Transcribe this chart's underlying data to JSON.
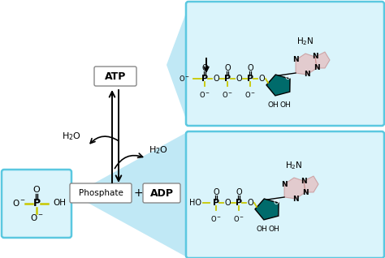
{
  "bg_color": "#ffffff",
  "box_border": "#5bc8e0",
  "panel_fill": "#daf4fb",
  "teal": "#006b6b",
  "yellow_bond": "#c8c800",
  "pink_ring": "#e8b0b0",
  "text_black": "#000000",
  "atp_label": "ATP",
  "phosphate_label": "Phosphate",
  "adp_label": "ADP",
  "plus_label": "+",
  "expand_fill": "#c0e8f5"
}
